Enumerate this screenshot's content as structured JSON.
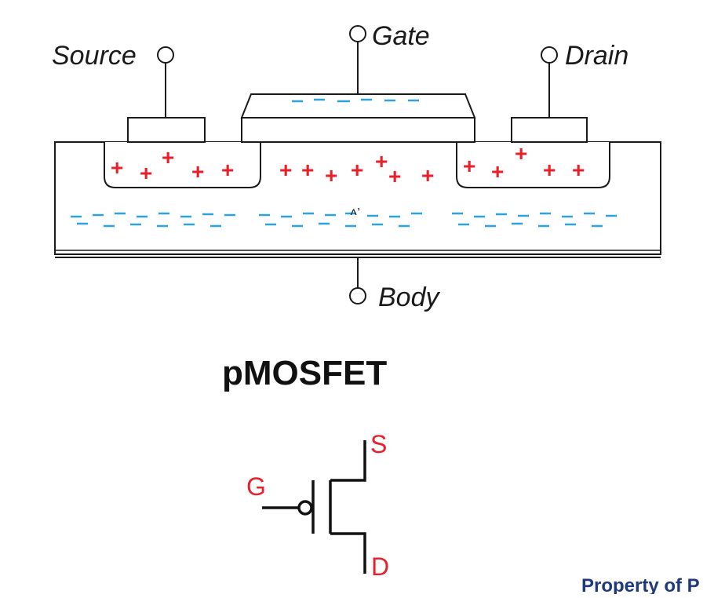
{
  "mosfet_diagram": {
    "terminals": {
      "source": "Source",
      "gate": "Gate",
      "drain": "Drain",
      "body": "Body"
    },
    "charges": {
      "positive": "+",
      "negative": "-"
    },
    "stray_mark": "˄’"
  },
  "caption": {
    "title": "pMOSFET"
  },
  "symbol": {
    "gate": "G",
    "source": "S",
    "drain": "D"
  },
  "footer": {
    "text": "Property of P"
  },
  "colors": {
    "positive_charge": "#e8202a",
    "negative_charge": "#2aa3e0",
    "symbol_label": "#e8202a",
    "footer_text": "#1f3a78",
    "stroke": "#1a1a1a"
  }
}
